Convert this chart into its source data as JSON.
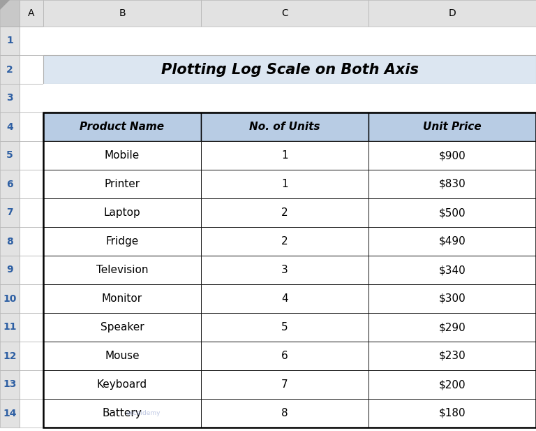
{
  "title": "Plotting Log Scale on Both Axis",
  "headers": [
    "Product Name",
    "No. of Units",
    "Unit Price"
  ],
  "rows": [
    [
      "Mobile",
      "1",
      "$900"
    ],
    [
      "Printer",
      "1",
      "$830"
    ],
    [
      "Laptop",
      "2",
      "$500"
    ],
    [
      "Fridge",
      "2",
      "$490"
    ],
    [
      "Television",
      "3",
      "$340"
    ],
    [
      "Monitor",
      "4",
      "$300"
    ],
    [
      "Speaker",
      "5",
      "$290"
    ],
    [
      "Mouse",
      "6",
      "$230"
    ],
    [
      "Keyboard",
      "7",
      "$200"
    ],
    [
      "Battery",
      "8",
      "$180"
    ]
  ],
  "col_letters": [
    "A",
    "B",
    "C",
    "D"
  ],
  "title_bg": "#dce6f1",
  "table_header_bg": "#b8cce4",
  "grid_color": "#b0b0b0",
  "col_header_bg": "#e2e2e2",
  "row_header_bg": "#e2e2e2",
  "corner_bg": "#c8c8c8",
  "row_num_color": "#2e5fa3",
  "title_fontsize": 15,
  "header_fontsize": 11,
  "data_fontsize": 11,
  "row_label_fontsize": 10,
  "col_label_fontsize": 10,
  "fig_bg": "#f2f2f2"
}
